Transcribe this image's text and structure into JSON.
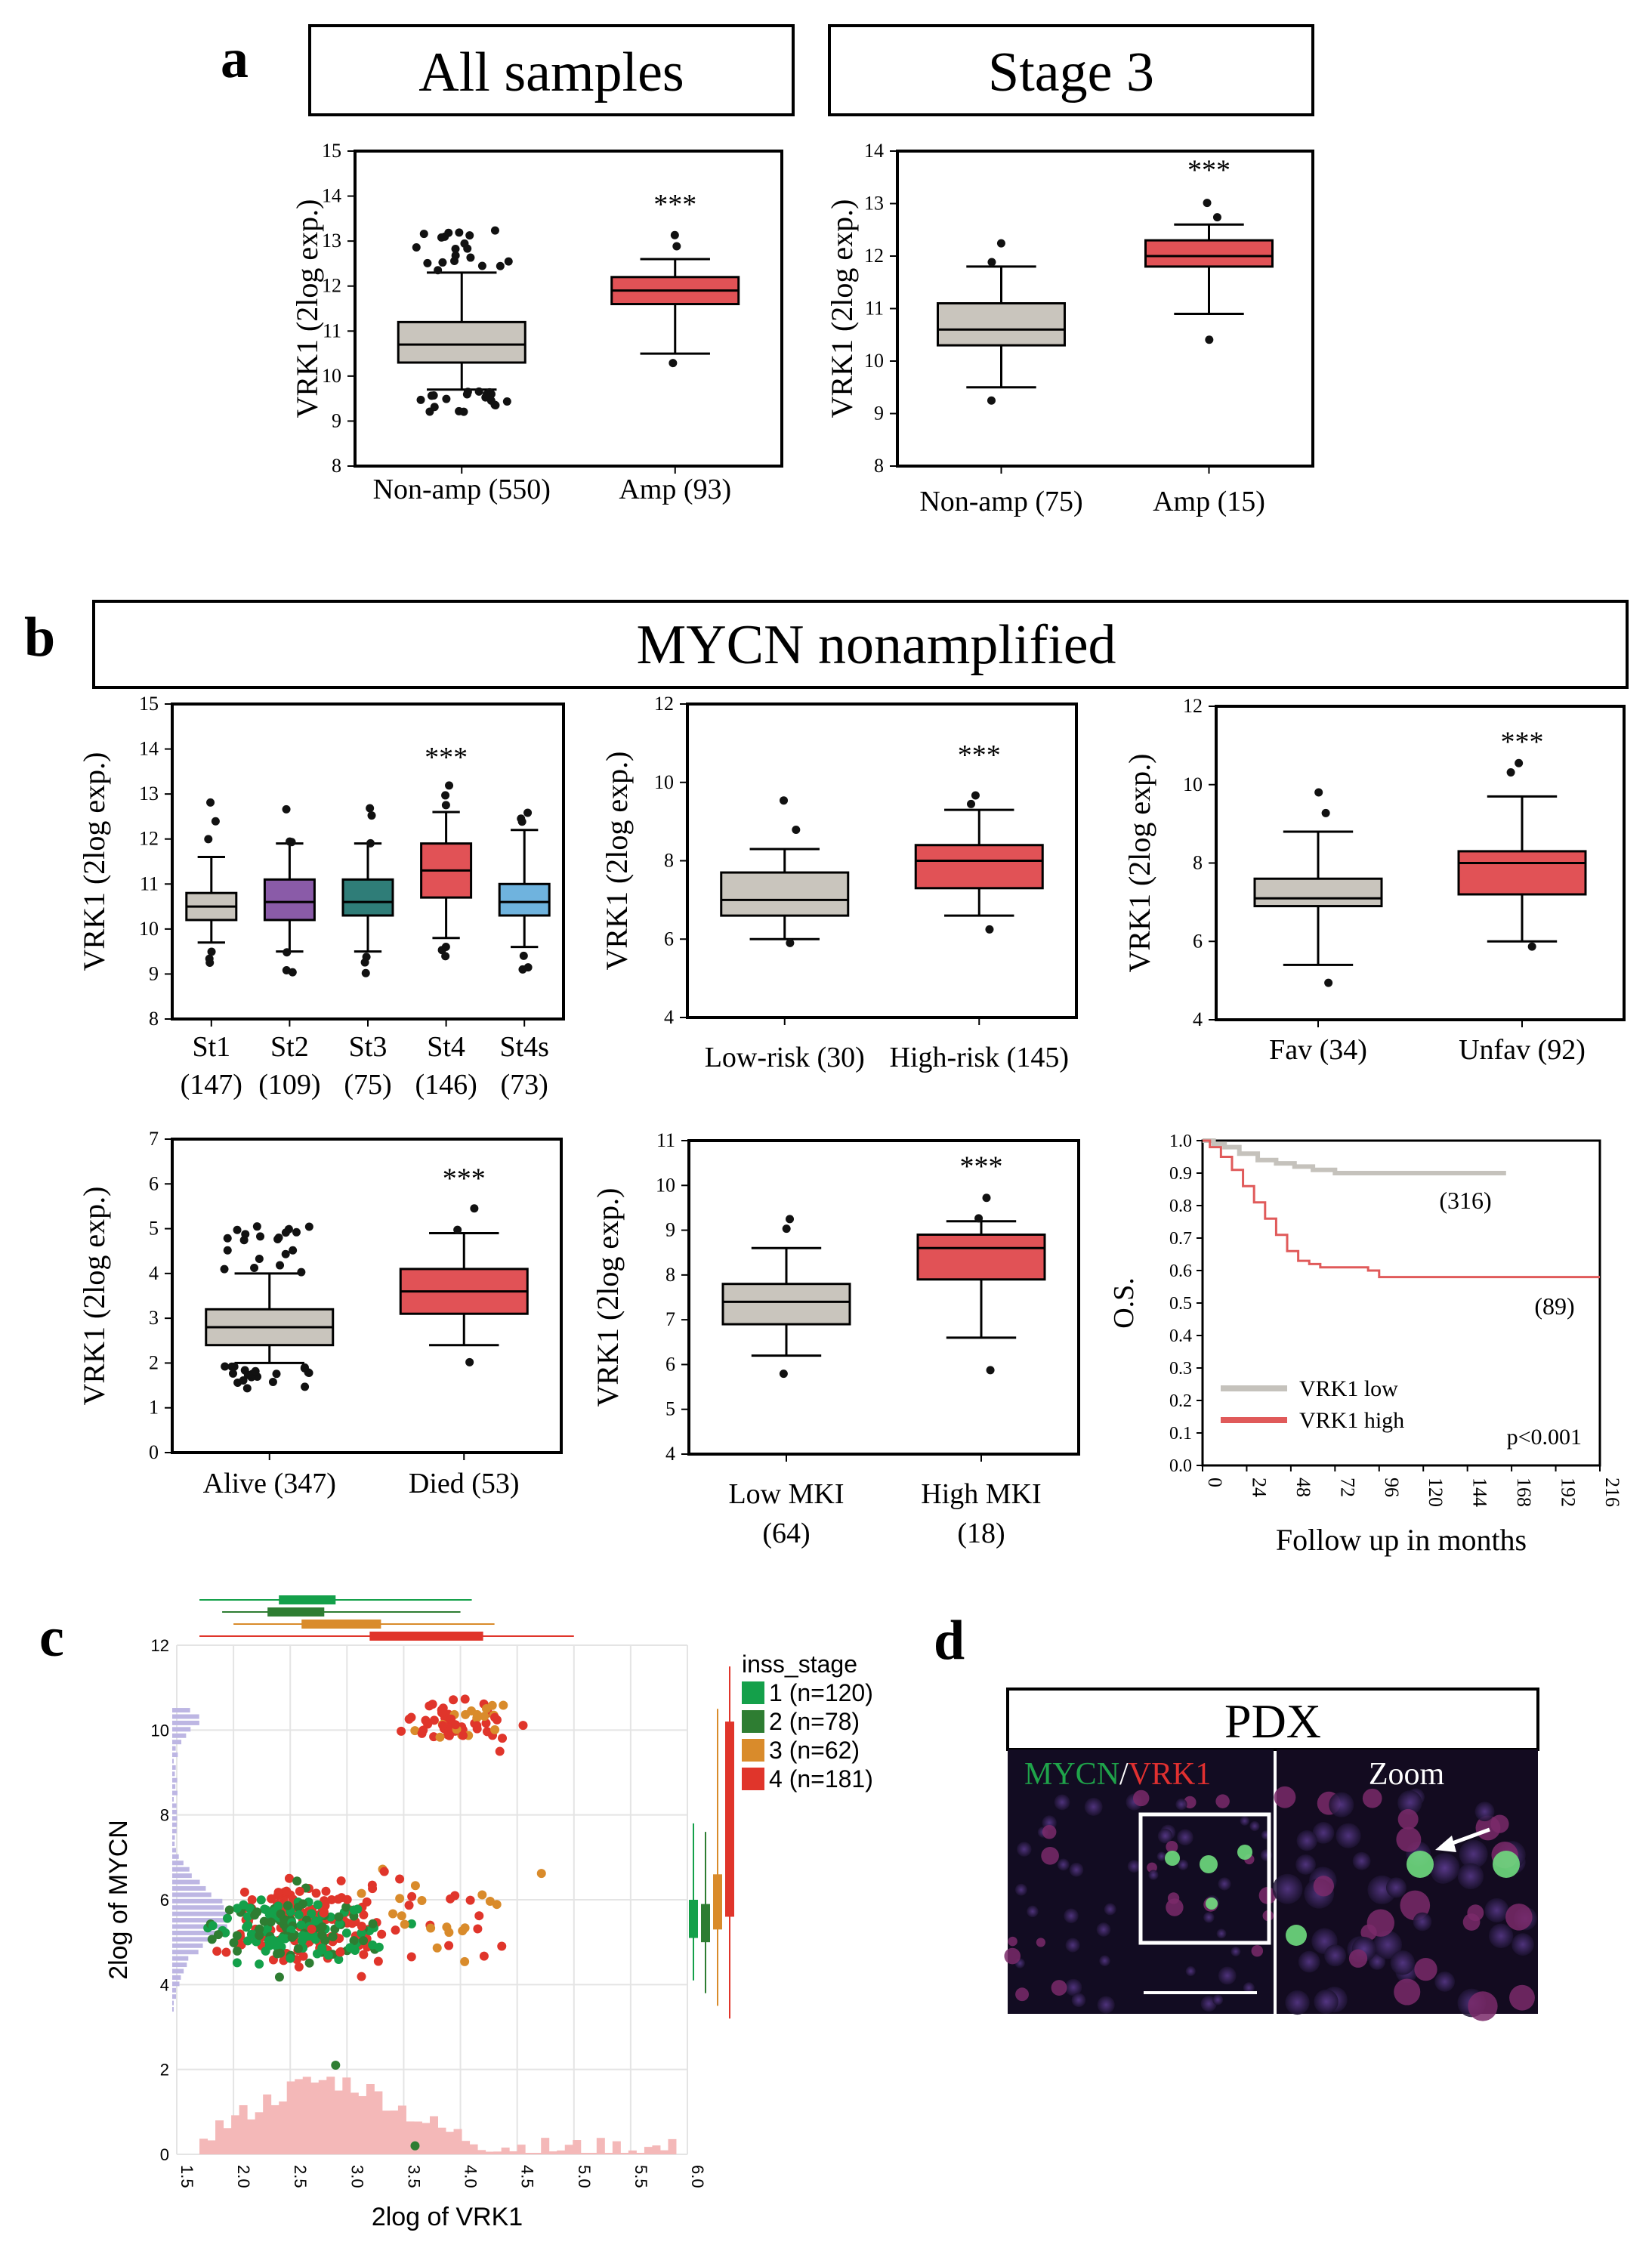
{
  "panel_letters": {
    "a": "a",
    "b": "b",
    "c": "c",
    "d": "d"
  },
  "colors": {
    "grey_box": "#c9c5bd",
    "red_box": "#e15256",
    "purple_box": "#8a5ba8",
    "teal_box": "#2f7d78",
    "blue_box": "#6fb3de",
    "stage1": "#14a04a",
    "stage2": "#2e7d32",
    "stage3": "#d98b2b",
    "stage4": "#e0352b",
    "km_low": "#c5c2bc",
    "km_high": "#e05a5a",
    "hist_x": "#f4b8b8",
    "hist_y": "#bdb6e3"
  },
  "panel_a": {
    "headers": [
      "All samples",
      "Stage 3"
    ]
  },
  "panel_b": {
    "header": "MYCN nonamplified"
  },
  "panel_d": {
    "header": "PDX",
    "label_mycn": "MYCN",
    "label_sep": "/",
    "label_vrk1": "VRK1",
    "label_zoom": "Zoom"
  },
  "chart_data": [
    {
      "id": "a1",
      "type": "box",
      "title": "All samples",
      "ylabel": "VRK1 (2log exp.)",
      "ylim": [
        8,
        15
      ],
      "yticks": [
        8,
        9,
        10,
        11,
        12,
        13,
        14,
        15
      ],
      "categories": [
        "Non-amp (550)",
        "Amp (93)"
      ],
      "significance": "***",
      "boxes": [
        {
          "q1": 10.3,
          "median": 10.7,
          "q3": 11.2,
          "lo": 9.7,
          "hi": 12.3,
          "color": "grey"
        },
        {
          "q1": 11.6,
          "median": 11.9,
          "q3": 12.2,
          "lo": 10.5,
          "hi": 12.6,
          "color": "red"
        }
      ]
    },
    {
      "id": "a2",
      "type": "box",
      "title": "Stage 3",
      "ylabel": "VRK1 (2log exp.)",
      "ylim": [
        8,
        14
      ],
      "yticks": [
        8,
        9,
        10,
        11,
        12,
        13,
        14
      ],
      "categories": [
        "Non-amp (75)",
        "Amp (15)"
      ],
      "significance": "***",
      "boxes": [
        {
          "q1": 10.3,
          "median": 10.6,
          "q3": 11.1,
          "lo": 9.5,
          "hi": 11.8,
          "color": "grey"
        },
        {
          "q1": 11.8,
          "median": 12.0,
          "q3": 12.3,
          "lo": 10.9,
          "hi": 12.6,
          "color": "red"
        }
      ]
    },
    {
      "id": "b1",
      "type": "box",
      "ylabel": "VRK1 (2log exp.)",
      "ylim": [
        8,
        15
      ],
      "yticks": [
        8,
        9,
        10,
        11,
        12,
        13,
        14,
        15
      ],
      "categories": [
        "St1",
        "St2",
        "St3",
        "St4",
        "St4s"
      ],
      "category_counts": [
        "(147)",
        "(109)",
        "(75)",
        "(146)",
        "(73)"
      ],
      "significance": "***",
      "significance_index": 3,
      "boxes": [
        {
          "q1": 10.2,
          "median": 10.5,
          "q3": 10.8,
          "lo": 9.7,
          "hi": 11.6,
          "color": "grey"
        },
        {
          "q1": 10.2,
          "median": 10.6,
          "q3": 11.1,
          "lo": 9.5,
          "hi": 11.9,
          "color": "purple"
        },
        {
          "q1": 10.3,
          "median": 10.6,
          "q3": 11.1,
          "lo": 9.5,
          "hi": 11.9,
          "color": "teal"
        },
        {
          "q1": 10.7,
          "median": 11.3,
          "q3": 11.9,
          "lo": 9.8,
          "hi": 12.6,
          "color": "red"
        },
        {
          "q1": 10.3,
          "median": 10.6,
          "q3": 11.0,
          "lo": 9.6,
          "hi": 12.2,
          "color": "blue"
        }
      ]
    },
    {
      "id": "b2",
      "type": "box",
      "ylabel": "VRK1 (2log exp.)",
      "ylim": [
        4,
        12
      ],
      "yticks": [
        4,
        6,
        8,
        10,
        12
      ],
      "categories": [
        "Low-risk (30)",
        "High-risk (145)"
      ],
      "significance": "***",
      "boxes": [
        {
          "q1": 6.6,
          "median": 7.0,
          "q3": 7.7,
          "lo": 6.0,
          "hi": 8.3,
          "color": "grey"
        },
        {
          "q1": 7.3,
          "median": 8.0,
          "q3": 8.4,
          "lo": 6.6,
          "hi": 9.3,
          "color": "red"
        }
      ]
    },
    {
      "id": "b3",
      "type": "box",
      "ylabel": "VRK1 (2log exp.)",
      "ylim": [
        4,
        12
      ],
      "yticks": [
        4,
        6,
        8,
        10,
        12
      ],
      "categories": [
        "Fav (34)",
        "Unfav (92)"
      ],
      "significance": "***",
      "boxes": [
        {
          "q1": 6.9,
          "median": 7.1,
          "q3": 7.6,
          "lo": 5.4,
          "hi": 8.8,
          "color": "grey"
        },
        {
          "q1": 7.2,
          "median": 8.0,
          "q3": 8.3,
          "lo": 6.0,
          "hi": 9.7,
          "color": "red"
        }
      ]
    },
    {
      "id": "b4",
      "type": "box",
      "ylabel": "VRK1 (2log exp.)",
      "ylim": [
        0,
        7
      ],
      "yticks": [
        0,
        1,
        2,
        3,
        4,
        5,
        6,
        7
      ],
      "categories": [
        "Alive (347)",
        "Died (53)"
      ],
      "significance": "***",
      "boxes": [
        {
          "q1": 2.4,
          "median": 2.8,
          "q3": 3.2,
          "lo": 2.0,
          "hi": 4.0,
          "color": "grey"
        },
        {
          "q1": 3.1,
          "median": 3.6,
          "q3": 4.1,
          "lo": 2.4,
          "hi": 4.9,
          "color": "red"
        }
      ]
    },
    {
      "id": "b5",
      "type": "box",
      "ylabel": "VRK1 (2log exp.)",
      "ylim": [
        4,
        11
      ],
      "yticks": [
        4,
        5,
        6,
        7,
        8,
        9,
        10,
        11
      ],
      "categories": [
        "Low MKI",
        "High MKI"
      ],
      "category_counts": [
        "(64)",
        "(18)"
      ],
      "significance": "***",
      "boxes": [
        {
          "q1": 6.9,
          "median": 7.4,
          "q3": 7.8,
          "lo": 6.2,
          "hi": 8.6,
          "color": "grey"
        },
        {
          "q1": 7.9,
          "median": 8.6,
          "q3": 8.9,
          "lo": 6.6,
          "hi": 9.2,
          "color": "red"
        }
      ]
    },
    {
      "id": "b6",
      "type": "line",
      "subtype": "kaplan-meier",
      "ylabel": "O.S.",
      "xlabel": "Follow up in months",
      "ylim": [
        0,
        1
      ],
      "yticks": [
        "0.0",
        "0.1",
        "0.2",
        "0.3",
        "0.4",
        "0.5",
        "0.6",
        "0.7",
        "0.8",
        "0.9",
        "1.0"
      ],
      "xlim": [
        0,
        216
      ],
      "xticks": [
        "0",
        "24",
        "48",
        "72",
        "96",
        "120",
        "144",
        "168",
        "192",
        "216"
      ],
      "legend": [
        "VRK1 low",
        "VRK1 high"
      ],
      "pvalue": "p<0.001",
      "annotations": [
        "(316)",
        "(89)"
      ],
      "series": [
        {
          "name": "VRK1 low",
          "x": [
            0,
            6,
            12,
            20,
            30,
            40,
            50,
            60,
            72,
            90,
            110,
            130,
            150,
            165
          ],
          "y": [
            1.0,
            0.99,
            0.98,
            0.96,
            0.94,
            0.93,
            0.92,
            0.91,
            0.9,
            0.9,
            0.9,
            0.9,
            0.9,
            0.9
          ]
        },
        {
          "name": "VRK1 high",
          "x": [
            0,
            4,
            10,
            16,
            22,
            28,
            34,
            40,
            46,
            52,
            58,
            64,
            72,
            80,
            90,
            96,
            120,
            150,
            180,
            216
          ],
          "y": [
            1.0,
            0.98,
            0.95,
            0.91,
            0.86,
            0.81,
            0.76,
            0.71,
            0.66,
            0.63,
            0.62,
            0.61,
            0.61,
            0.61,
            0.6,
            0.58,
            0.58,
            0.58,
            0.58,
            0.58
          ]
        }
      ]
    },
    {
      "id": "c",
      "type": "scatter",
      "xlabel": "2log of VRK1",
      "ylabel": "2log of MYCN",
      "xlim": [
        1.5,
        6.0
      ],
      "ylim": [
        0,
        12
      ],
      "xticks": [
        "1.5",
        "2.0",
        "2.5",
        "3.0",
        "3.5",
        "4.0",
        "4.5",
        "5.0",
        "5.5",
        "6.0"
      ],
      "yticks": [
        "0",
        "2",
        "4",
        "6",
        "8",
        "10",
        "12"
      ],
      "legend_title": "inss_stage",
      "legend": [
        "1 (n=120)",
        "2 (n=78)",
        "3 (n=62)",
        "4 (n=181)"
      ]
    }
  ]
}
